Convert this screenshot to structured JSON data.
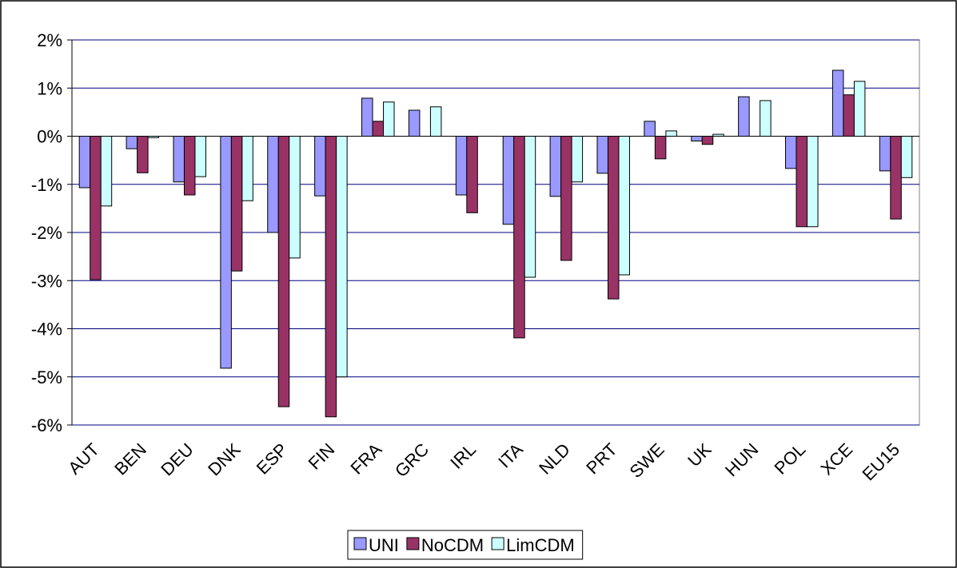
{
  "chart_data": {
    "type": "bar",
    "categories": [
      "AUT",
      "BEN",
      "DEU",
      "DNK",
      "ESP",
      "FIN",
      "FRA",
      "GRC",
      "IRL",
      "ITA",
      "NLD",
      "PRT",
      "SWE",
      "UK",
      "HUN",
      "POL",
      "XCE",
      "EU15"
    ],
    "series": [
      {
        "name": "UNI",
        "color": "#9999ff",
        "values": [
          -1.07,
          -0.26,
          -0.95,
          -4.82,
          -2.0,
          -1.24,
          0.79,
          0.54,
          -1.22,
          -1.83,
          -1.25,
          -0.77,
          0.31,
          -0.1,
          0.82,
          -0.67,
          1.37,
          -0.72
        ]
      },
      {
        "name": "NoCDM",
        "color": "#993366",
        "values": [
          -2.98,
          -0.76,
          -1.22,
          -2.8,
          -5.62,
          -5.83,
          0.31,
          0,
          -1.59,
          -4.19,
          -2.58,
          -3.38,
          -0.47,
          -0.17,
          0,
          -1.88,
          0.86,
          -1.72
        ]
      },
      {
        "name": "LimCDM",
        "color": "#ccffff",
        "values": [
          -1.45,
          -0.03,
          -0.84,
          -1.34,
          -2.53,
          -5.0,
          0.71,
          0.61,
          0,
          -2.93,
          -0.95,
          -2.88,
          0.11,
          0.04,
          0.74,
          -1.88,
          1.14,
          -0.86
        ]
      }
    ],
    "ylim": [
      -6,
      2
    ],
    "yticks": [
      {
        "value": -6,
        "label": "-6%"
      },
      {
        "value": -5,
        "label": "-5%"
      },
      {
        "value": -4,
        "label": "-4%"
      },
      {
        "value": -3,
        "label": "-3%"
      },
      {
        "value": -2,
        "label": "-2%"
      },
      {
        "value": -1,
        "label": "-1%"
      },
      {
        "value": 0,
        "label": "0%"
      },
      {
        "value": 1,
        "label": "1%"
      },
      {
        "value": 2,
        "label": "2%"
      }
    ],
    "grid": true,
    "legend": "bottom"
  }
}
